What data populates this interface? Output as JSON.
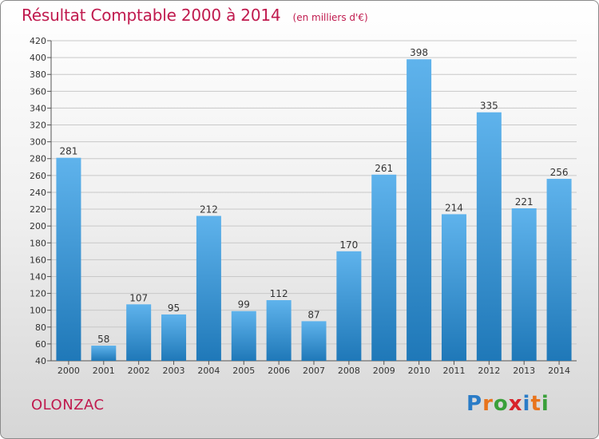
{
  "header": {
    "title": "Résultat Comptable 2000 à 2014",
    "unit": "(en milliers d'€)"
  },
  "footer": {
    "commune": "OLONZAC",
    "logo_text": "Proxiti"
  },
  "colors": {
    "title": "#c01a4e",
    "bar_top": "#5fb3ec",
    "bar_bottom": "#1f78b8",
    "logo": [
      "#2a7cc7",
      "#e8741c",
      "#3aa03a",
      "#d8232a",
      "#2a7cc7",
      "#e8741c",
      "#3aa03a"
    ]
  },
  "chart_data": {
    "type": "bar",
    "categories": [
      "2000",
      "2001",
      "2002",
      "2003",
      "2004",
      "2005",
      "2006",
      "2007",
      "2008",
      "2009",
      "2010",
      "2011",
      "2012",
      "2013",
      "2014"
    ],
    "values": [
      281,
      58,
      107,
      95,
      212,
      99,
      112,
      87,
      170,
      261,
      398,
      214,
      335,
      221,
      256
    ],
    "title": "Résultat Comptable 2000 à 2014",
    "xlabel": "",
    "ylabel": "",
    "ylim": [
      40,
      420
    ],
    "yticks": [
      40,
      60,
      80,
      100,
      120,
      140,
      160,
      180,
      200,
      220,
      240,
      260,
      280,
      300,
      320,
      340,
      360,
      380,
      400,
      420
    ],
    "grid": true,
    "legend": "none"
  }
}
